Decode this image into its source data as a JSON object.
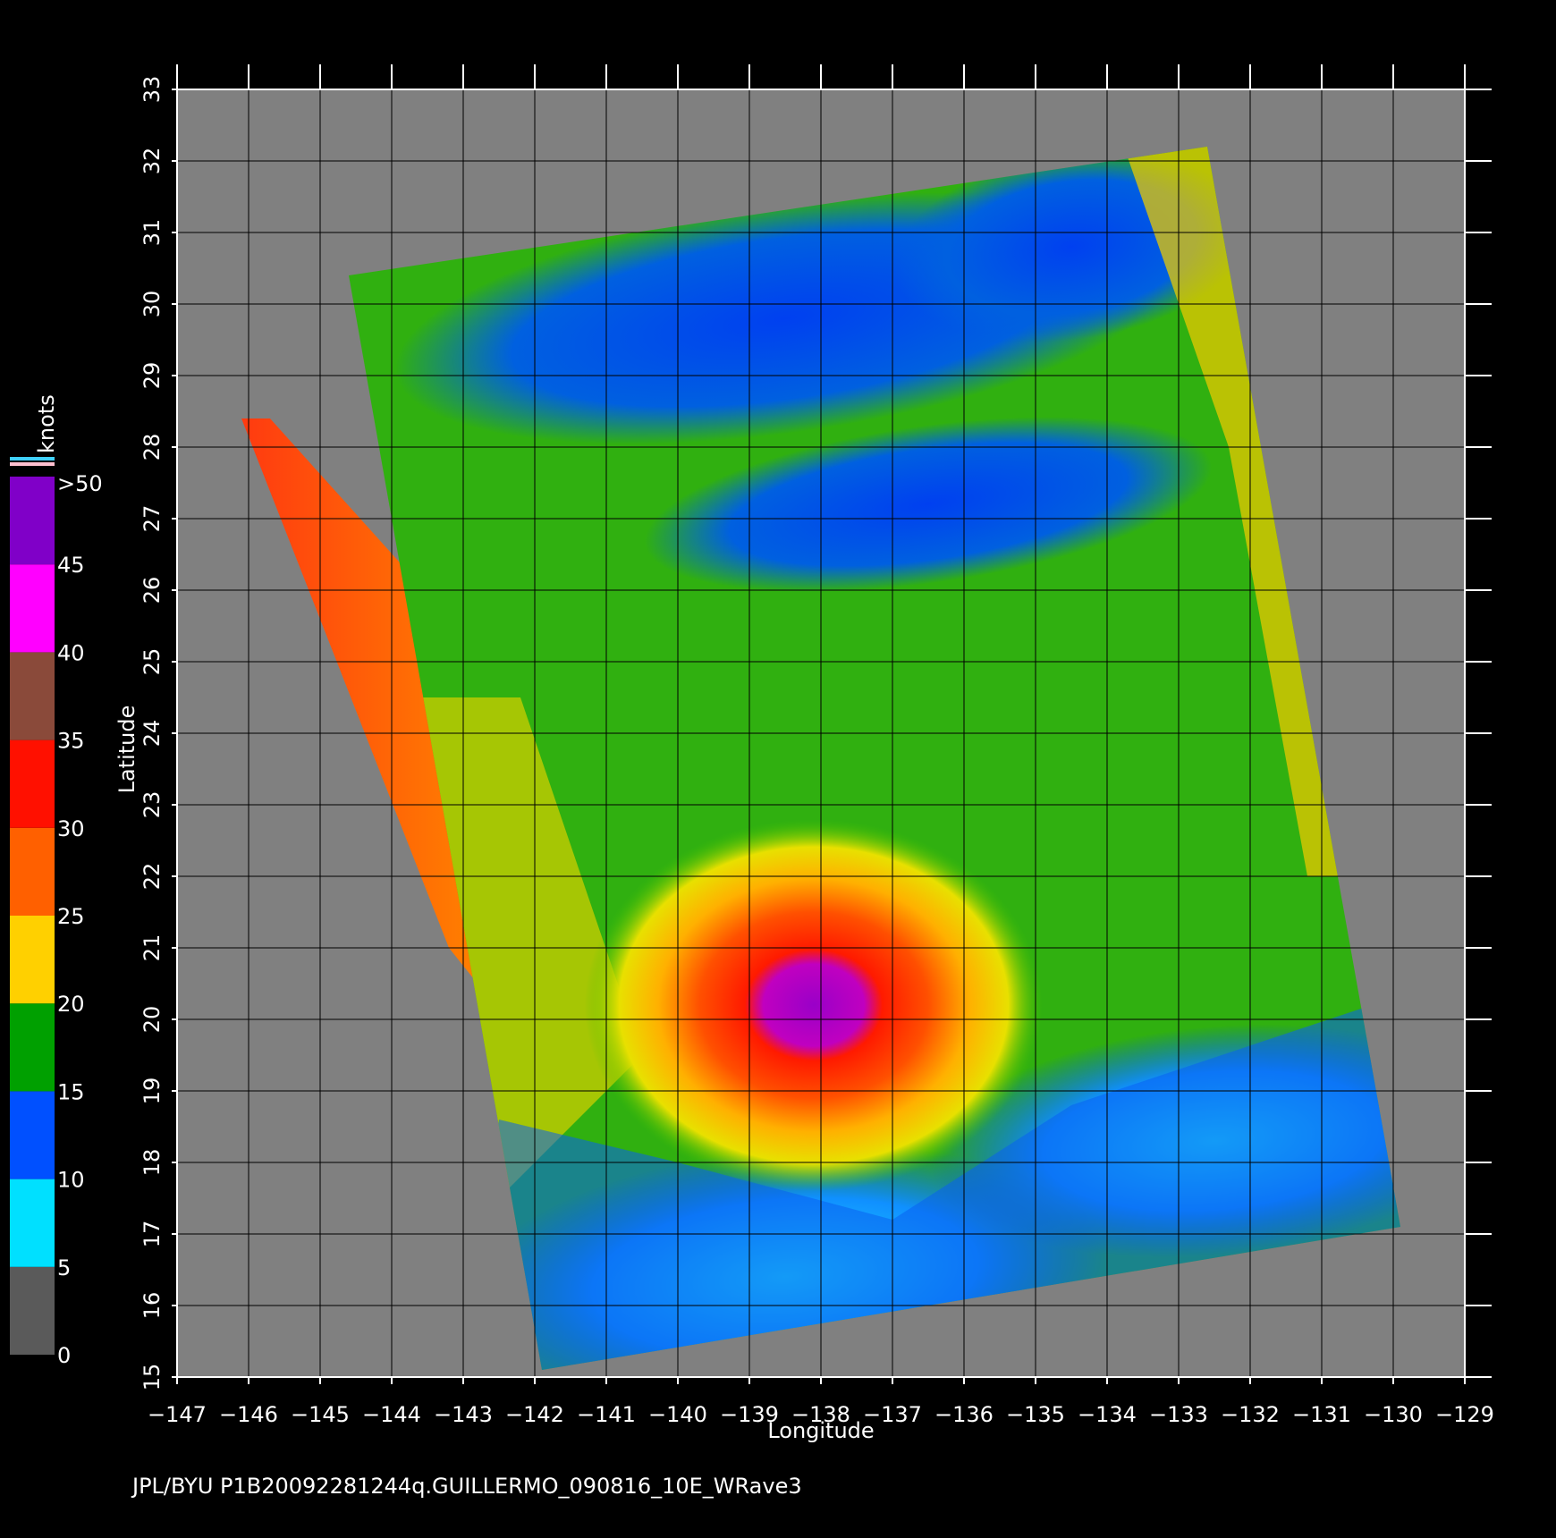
{
  "map": {
    "xlabel": "Longitude",
    "ylabel": "Latitude",
    "xlim": [
      -147,
      -129
    ],
    "ylim": [
      15,
      33
    ],
    "xticks": [
      {
        "value": -147,
        "label": "−147"
      },
      {
        "value": -146,
        "label": "−146"
      },
      {
        "value": -145,
        "label": "−145"
      },
      {
        "value": -144,
        "label": "−144"
      },
      {
        "value": -143,
        "label": "−143"
      },
      {
        "value": -142,
        "label": "−142"
      },
      {
        "value": -141,
        "label": "−141"
      },
      {
        "value": -140,
        "label": "−140"
      },
      {
        "value": -139,
        "label": "−139"
      },
      {
        "value": -138,
        "label": "−138"
      },
      {
        "value": -137,
        "label": "−137"
      },
      {
        "value": -136,
        "label": "−136"
      },
      {
        "value": -135,
        "label": "−135"
      },
      {
        "value": -134,
        "label": "−134"
      },
      {
        "value": -133,
        "label": "−133"
      },
      {
        "value": -132,
        "label": "−132"
      },
      {
        "value": -131,
        "label": "−131"
      },
      {
        "value": -130,
        "label": "−130"
      },
      {
        "value": -129,
        "label": "−129"
      }
    ],
    "yticks": [
      15,
      16,
      17,
      18,
      19,
      20,
      21,
      22,
      23,
      24,
      25,
      26,
      27,
      28,
      29,
      30,
      31,
      32,
      33
    ]
  },
  "colorbar": {
    "title": "knots",
    "range": [
      0,
      50
    ],
    "ticks": [
      0,
      5,
      10,
      15,
      20,
      25,
      30,
      35,
      40,
      45
    ],
    "top_label": ">50",
    "colors": [
      "#5a5a5a",
      "#00e0ff",
      "#0050ff",
      "#00a000",
      "#ffd000",
      "#ff6000",
      "#ff1000",
      "#8a4a3a",
      "#ff00ff",
      "#8000c8"
    ]
  },
  "footer": "JPL/BYU  P1B20092281244q.GUILLERMO_090816_10E_WRave3"
}
